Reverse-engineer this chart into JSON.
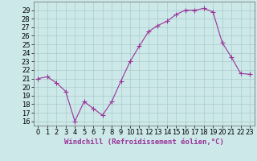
{
  "x": [
    0,
    1,
    2,
    3,
    4,
    5,
    6,
    7,
    8,
    9,
    10,
    11,
    12,
    13,
    14,
    15,
    16,
    17,
    18,
    19,
    20,
    21,
    22,
    23
  ],
  "y": [
    21,
    21.2,
    20.5,
    19.5,
    16,
    18.3,
    17.5,
    16.7,
    18.3,
    20.7,
    23,
    24.8,
    26.5,
    27.2,
    27.7,
    28.5,
    29.0,
    29.0,
    29.2,
    28.8,
    25.2,
    23.5,
    21.6,
    21.5
  ],
  "line_color": "#993399",
  "marker": "D",
  "marker_size": 2,
  "bg_color": "#cce8e8",
  "grid_color": "#aacccc",
  "xlabel": "Windchill (Refroidissement éolien,°C)",
  "xlim": [
    -0.5,
    23.5
  ],
  "ylim": [
    15.5,
    30.0
  ],
  "yticks": [
    16,
    17,
    18,
    19,
    20,
    21,
    22,
    23,
    24,
    25,
    26,
    27,
    28,
    29
  ],
  "xtick_labels": [
    "0",
    "1",
    "2",
    "3",
    "4",
    "5",
    "6",
    "7",
    "8",
    "9",
    "10",
    "11",
    "12",
    "13",
    "14",
    "15",
    "16",
    "17",
    "18",
    "19",
    "20",
    "21",
    "22",
    "23"
  ],
  "label_fontsize": 6.5,
  "tick_fontsize": 6
}
